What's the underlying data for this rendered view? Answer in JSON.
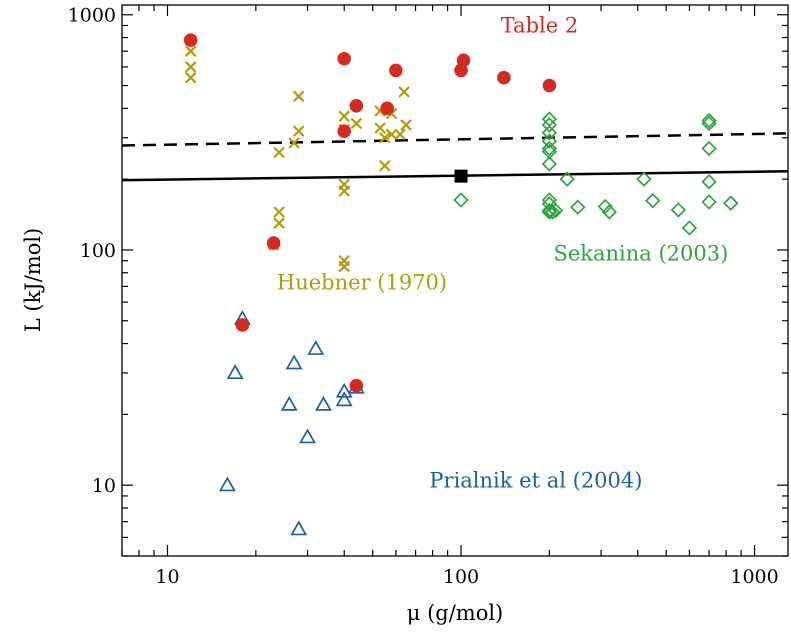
{
  "chart_data": {
    "type": "scatter",
    "xlabel": "μ  (g/mol)",
    "ylabel": "L  (kJ/mol)",
    "xscale": "log",
    "yscale": "log",
    "xlim": [
      7,
      1300
    ],
    "ylim": [
      5,
      1100
    ],
    "xticks": [
      {
        "value": 10,
        "label": "10"
      },
      {
        "value": 100,
        "label": "100"
      },
      {
        "value": 1000,
        "label": "1000"
      }
    ],
    "yticks": [
      {
        "value": 10,
        "label": "10"
      },
      {
        "value": 100,
        "label": "100"
      },
      {
        "value": 1000,
        "label": "1000"
      }
    ],
    "colors": {
      "table2": "#d42a1f",
      "huebner": "#b59a06",
      "sekanina": "#2ea33a",
      "prialnik": "#1c5ea8",
      "fit": "#000000"
    },
    "series": [
      {
        "key": "huebner",
        "marker": "x",
        "points": [
          [
            12,
            700
          ],
          [
            12,
            600
          ],
          [
            12,
            540
          ],
          [
            23,
            105
          ],
          [
            24,
            145
          ],
          [
            24,
            130
          ],
          [
            24,
            260
          ],
          [
            27,
            285
          ],
          [
            28,
            320
          ],
          [
            28,
            450
          ],
          [
            40,
            90
          ],
          [
            40,
            85
          ],
          [
            40,
            190
          ],
          [
            40,
            178
          ],
          [
            40,
            370
          ],
          [
            40,
            325
          ],
          [
            44,
            345
          ],
          [
            53,
            330
          ],
          [
            53,
            390
          ],
          [
            55,
            228
          ],
          [
            55,
            300
          ],
          [
            58,
            310
          ],
          [
            58,
            380
          ],
          [
            62,
            310
          ],
          [
            65,
            340
          ],
          [
            64,
            470
          ]
        ]
      },
      {
        "key": "sekanina",
        "marker": "diamond",
        "points": [
          [
            100,
            163
          ],
          [
            200,
            360
          ],
          [
            200,
            340
          ],
          [
            200,
            315
          ],
          [
            200,
            290
          ],
          [
            200,
            270
          ],
          [
            200,
            262
          ],
          [
            200,
            232
          ],
          [
            200,
            163
          ],
          [
            200,
            157
          ],
          [
            200,
            147
          ],
          [
            200,
            145
          ],
          [
            205,
            145
          ],
          [
            210,
            147
          ],
          [
            230,
            200
          ],
          [
            250,
            152
          ],
          [
            310,
            153
          ],
          [
            320,
            145
          ],
          [
            420,
            200
          ],
          [
            450,
            162
          ],
          [
            550,
            148
          ],
          [
            600,
            124
          ],
          [
            700,
            355
          ],
          [
            700,
            345
          ],
          [
            700,
            270
          ],
          [
            700,
            195
          ],
          [
            700,
            160
          ],
          [
            830,
            158
          ]
        ]
      },
      {
        "key": "prialnik",
        "marker": "triangle",
        "points": [
          [
            16,
            10
          ],
          [
            17,
            30
          ],
          [
            18,
            51
          ],
          [
            26,
            22
          ],
          [
            27,
            33
          ],
          [
            28,
            6.5
          ],
          [
            30,
            16
          ],
          [
            32,
            38
          ],
          [
            34,
            22
          ],
          [
            40,
            25
          ],
          [
            40,
            23
          ],
          [
            44,
            26
          ]
        ]
      },
      {
        "key": "table2",
        "marker": "circle",
        "points": [
          [
            12,
            780
          ],
          [
            18,
            48
          ],
          [
            23,
            107
          ],
          [
            40,
            650
          ],
          [
            40,
            320
          ],
          [
            44,
            410
          ],
          [
            56,
            400
          ],
          [
            60,
            580
          ],
          [
            100,
            580
          ],
          [
            102,
            640
          ],
          [
            140,
            540
          ],
          [
            200,
            500
          ],
          [
            44,
            26.5
          ]
        ]
      }
    ],
    "fits": [
      {
        "key": "solid",
        "style": "solid",
        "x": [
          7,
          1300
        ],
        "y": [
          198,
          216
        ]
      },
      {
        "key": "dashed",
        "style": "dashed",
        "x": [
          7,
          1300
        ],
        "y": [
          278,
          313
        ]
      }
    ],
    "highlight_point": {
      "marker": "square",
      "x": [
        100
      ],
      "y": [
        206
      ]
    },
    "annotations": [
      {
        "key": "table2",
        "text": "Table 2",
        "x": 185,
        "y": 840
      },
      {
        "key": "huebner",
        "text": "Huebner (1970)",
        "x": 46,
        "y": 68
      },
      {
        "key": "sekanina",
        "text": "Sekanina (2003)",
        "x": 410,
        "y": 90
      },
      {
        "key": "prialnik",
        "text": "Prialnik et al (2004)",
        "x": 180,
        "y": 9.8
      }
    ]
  }
}
